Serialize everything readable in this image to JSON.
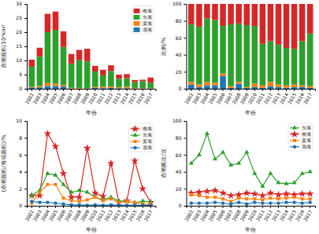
{
  "chart_data": [
    {
      "type": "bar",
      "stacked": true,
      "xlabel": "年份",
      "ylabel": "赤潮面积/10⁴km²",
      "categories": [
        "2002",
        "2003",
        "2004",
        "2005",
        "2006",
        "2007",
        "2008",
        "2009",
        "2010",
        "2011",
        "2012",
        "2013",
        "2014",
        "2015",
        "2016",
        "2017"
      ],
      "series": [
        {
          "name": "渤海",
          "values": [
            0.5,
            0.5,
            1.0,
            1.0,
            0.8,
            0.1,
            0.05,
            0.05,
            0.3,
            0.2,
            0.3,
            0.2,
            0.2,
            0.1,
            0.1,
            0.05
          ]
        },
        {
          "name": "黄海",
          "values": [
            0.3,
            0.5,
            1.0,
            0.8,
            0.5,
            0.2,
            0.2,
            0.1,
            0.3,
            0.5,
            0.5,
            0.3,
            0.5,
            0.2,
            0.1,
            0.1
          ]
        },
        {
          "name": "东海",
          "values": [
            7.0,
            10.5,
            18.0,
            19.0,
            13.5,
            8.5,
            10.0,
            9.5,
            5.5,
            4.0,
            5.5,
            3.0,
            3.0,
            2.0,
            2.5,
            2.0
          ]
        },
        {
          "name": "南海",
          "values": [
            2.5,
            3.0,
            6.5,
            6.5,
            5.5,
            3.5,
            3.5,
            4.5,
            2.0,
            2.0,
            2.0,
            1.5,
            1.5,
            0.8,
            0.5,
            1.8
          ]
        }
      ],
      "ylim": [
        0,
        30
      ],
      "yticks": [
        0,
        5,
        10,
        15,
        20,
        25,
        30
      ],
      "legend": "upper right"
    },
    {
      "type": "bar",
      "stacked": true,
      "xlabel": "年份",
      "ylabel": "比例/%",
      "categories": [
        "2002",
        "2003",
        "2004",
        "2005",
        "2006",
        "2007",
        "2008",
        "2009",
        "2010",
        "2011",
        "2012",
        "2013",
        "2014",
        "2015",
        "2016",
        "2017"
      ],
      "series": [
        {
          "values": [
            5,
            2,
            4,
            4,
            15,
            1,
            6,
            1,
            2,
            1,
            3,
            2,
            1,
            2,
            2,
            1
          ]
        },
        {
          "values": [
            3,
            3,
            4,
            3,
            3,
            2,
            2,
            1,
            4,
            3,
            5,
            3,
            3,
            3,
            2,
            2
          ]
        },
        {
          "values": [
            68,
            68,
            75,
            74,
            56,
            73,
            69,
            73,
            68,
            49,
            48,
            47,
            44,
            42,
            52,
            62
          ]
        },
        {
          "values": [
            24,
            27,
            17,
            19,
            26,
            24,
            23,
            25,
            26,
            47,
            44,
            48,
            52,
            53,
            44,
            35
          ]
        }
      ],
      "ylim": [
        0,
        100
      ],
      "yticks": [
        0,
        20,
        40,
        60,
        80,
        100
      ]
    },
    {
      "type": "line",
      "xlabel": "年份",
      "ylabel": "(赤潮面积/海域面积)/%",
      "categories": [
        "2002",
        "2003",
        "2004",
        "2005",
        "2006",
        "2007",
        "2008",
        "2009",
        "2010",
        "2011",
        "2012",
        "2013",
        "2014",
        "2015",
        "2016",
        "2017"
      ],
      "series": [
        {
          "name": "南海",
          "marker": "star",
          "values": [
            1.2,
            1.2,
            8.5,
            7.0,
            3.8,
            1.0,
            1.0,
            6.8,
            1.5,
            1.1,
            5.0,
            0.4,
            0.6,
            5.3,
            2.0,
            0.4
          ]
        },
        {
          "name": "东海",
          "marker": "triangle",
          "values": [
            1.2,
            1.8,
            3.8,
            3.6,
            2.5,
            1.6,
            1.8,
            1.6,
            1.0,
            0.7,
            1.0,
            0.55,
            0.55,
            0.35,
            0.55,
            0.45
          ]
        },
        {
          "name": "黄海",
          "marker": "square",
          "values": [
            0.3,
            1.6,
            2.5,
            2.5,
            0.9,
            0.6,
            0.5,
            0.7,
            1.0,
            0.6,
            0.8,
            0.4,
            0.5,
            0.4,
            0.2,
            0.2
          ]
        },
        {
          "name": "渤海",
          "marker": "circle",
          "values": [
            0.5,
            0.4,
            0.4,
            0.3,
            0.2,
            0.1,
            0.1,
            0.05,
            0.1,
            0.05,
            0.1,
            0.05,
            0.05,
            0.05,
            0.05,
            0.05
          ]
        }
      ],
      "ylim": [
        0,
        10
      ],
      "yticks": [
        0,
        2,
        4,
        6,
        8,
        10
      ],
      "legend": "upper right"
    },
    {
      "type": "line",
      "xlabel": "年份",
      "ylabel": "赤潮频次/次",
      "categories": [
        "2002",
        "2003",
        "2004",
        "2005",
        "2006",
        "2007",
        "2008",
        "2009",
        "2010",
        "2011",
        "2012",
        "2013",
        "2014",
        "2015",
        "2016",
        "2017"
      ],
      "series": [
        {
          "name": "东海",
          "marker": "triangle",
          "values": [
            50,
            60,
            85,
            55,
            63,
            48,
            50,
            63,
            38,
            23,
            38,
            27,
            26,
            27,
            38,
            40
          ]
        },
        {
          "name": "南海",
          "marker": "star",
          "values": [
            15,
            16,
            17,
            18,
            15,
            12,
            13,
            15,
            14,
            12,
            15,
            13,
            14,
            13,
            14,
            14
          ]
        },
        {
          "name": "黄海",
          "marker": "square",
          "values": [
            13,
            12,
            10,
            10,
            8,
            5,
            9,
            8,
            8,
            7,
            9,
            8,
            9,
            10,
            8,
            8
          ]
        },
        {
          "name": "渤海",
          "marker": "circle",
          "values": [
            3,
            3,
            3,
            4,
            3,
            2,
            4,
            2,
            4,
            3,
            3,
            3,
            4,
            4,
            3,
            4
          ]
        }
      ],
      "ylim": [
        0,
        100
      ],
      "yticks": [
        0,
        20,
        40,
        60,
        80,
        100
      ],
      "legend": "upper right"
    }
  ]
}
